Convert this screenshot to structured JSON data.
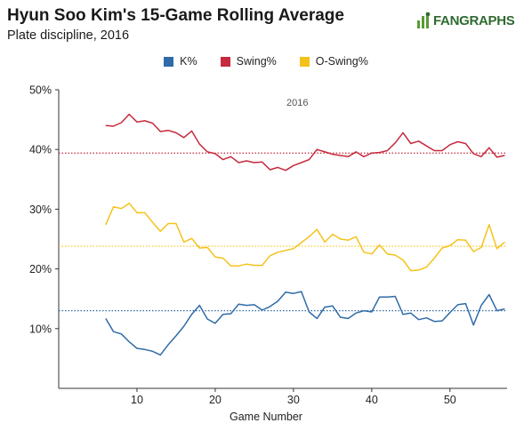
{
  "header": {
    "title": "Hyun Soo Kim's 15-Game Rolling Average",
    "subtitle": "Plate discipline, 2016",
    "logo_text": "FANGRAPHS"
  },
  "chart_data": {
    "type": "line",
    "xlabel": "Game Number",
    "ylabel": "",
    "annotation": "2016",
    "xlim": [
      0,
      57.3
    ],
    "ylim": [
      0,
      50
    ],
    "x_ticks": [
      10,
      20,
      30,
      40,
      50
    ],
    "y_ticks": [
      10,
      20,
      30,
      40,
      50
    ],
    "y_tick_labels": [
      "10%",
      "20%",
      "30%",
      "40%",
      "50%"
    ],
    "x_start": 6,
    "legend_position": "top-center",
    "grid": false,
    "series": [
      {
        "name": "K%",
        "color": "#2f6ba8",
        "average": 13,
        "values": [
          11.7,
          9.5,
          9.1,
          7.8,
          6.7,
          6.5,
          6.2,
          5.6,
          7.3,
          8.8,
          10.4,
          12.4,
          13.9,
          11.6,
          10.9,
          12.4,
          12.5,
          14.1,
          13.9,
          14.0,
          13.1,
          13.7,
          14.6,
          16.1,
          15.9,
          16.2,
          12.8,
          11.7,
          13.6,
          13.8,
          11.9,
          11.7,
          12.6,
          13.0,
          12.8,
          15.3,
          15.3,
          15.4,
          12.4,
          12.6,
          11.5,
          11.8,
          11.2,
          11.3,
          12.7,
          14.0,
          14.2,
          10.6,
          13.9,
          15.7,
          13.0,
          13.3
        ]
      },
      {
        "name": "Swing%",
        "color": "#c62a3e",
        "average": 39.4,
        "values": [
          44.0,
          43.9,
          44.5,
          45.9,
          44.6,
          44.8,
          44.4,
          43.0,
          43.2,
          42.8,
          42.0,
          43.1,
          40.9,
          39.6,
          39.3,
          38.3,
          38.8,
          37.8,
          38.1,
          37.8,
          37.9,
          36.6,
          37.0,
          36.5,
          37.3,
          37.8,
          38.3,
          40.0,
          39.6,
          39.2,
          39.0,
          38.8,
          39.6,
          38.8,
          39.4,
          39.5,
          39.8,
          41.1,
          42.8,
          41.0,
          41.4,
          40.6,
          39.8,
          39.8,
          40.8,
          41.3,
          41.0,
          39.3,
          38.8,
          40.3,
          38.7,
          39.0
        ]
      },
      {
        "name": "O-Swing%",
        "color": "#f5c21b",
        "average": 23.8,
        "values": [
          27.4,
          30.4,
          30.1,
          31.0,
          29.4,
          29.4,
          27.8,
          26.3,
          27.6,
          27.6,
          24.5,
          25.1,
          23.5,
          23.6,
          22.0,
          21.8,
          20.5,
          20.5,
          20.8,
          20.6,
          20.6,
          22.2,
          22.8,
          23.1,
          23.4,
          24.4,
          25.4,
          26.6,
          24.5,
          25.8,
          25.0,
          24.8,
          25.4,
          22.8,
          22.5,
          24.0,
          22.5,
          22.3,
          21.5,
          19.7,
          19.8,
          20.3,
          21.8,
          23.5,
          23.9,
          24.9,
          24.8,
          22.9,
          23.6,
          27.4,
          23.4,
          24.5
        ]
      }
    ]
  }
}
